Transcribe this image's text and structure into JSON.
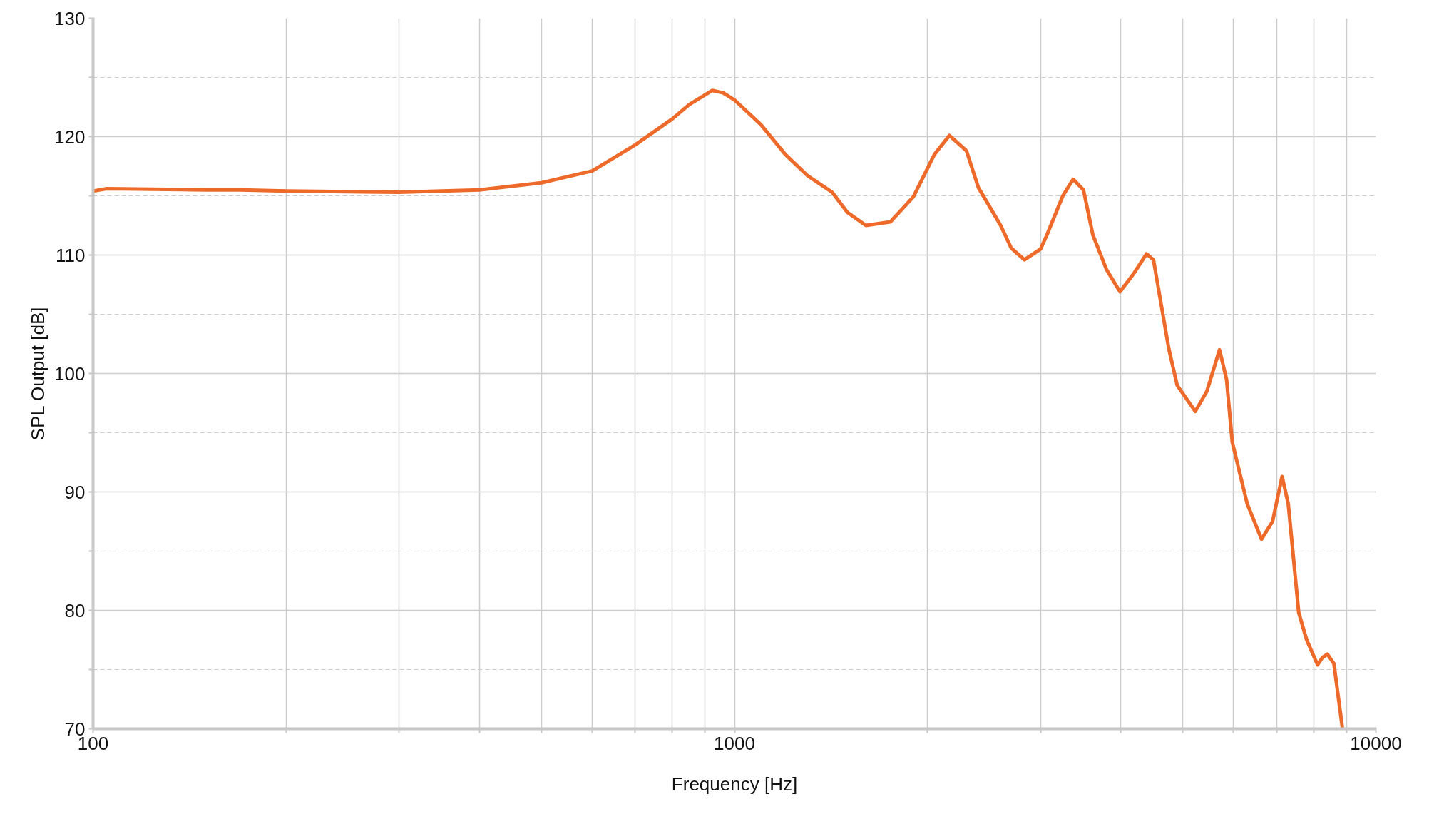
{
  "chart_data": {
    "type": "line",
    "xlabel": "Frequency [Hz]",
    "ylabel": "SPL Output [dB]",
    "log": "x",
    "grid": true,
    "marker": "none",
    "line_style": "solid",
    "xlim": [
      100,
      10000
    ],
    "ylim": [
      70,
      130
    ],
    "xticks": [
      100,
      {
        "value": 200,
        "label": null
      },
      {
        "value": 300,
        "label": null
      },
      {
        "value": 400,
        "label": null
      },
      {
        "value": 500,
        "label": null
      },
      {
        "value": 600,
        "label": null
      },
      {
        "value": 700,
        "label": null
      },
      {
        "value": 800,
        "label": null
      },
      {
        "value": 900,
        "label": null
      },
      1000,
      {
        "value": 2000,
        "label": null
      },
      {
        "value": 3000,
        "label": null
      },
      {
        "value": 4000,
        "label": null
      },
      {
        "value": 5000,
        "label": null
      },
      {
        "value": 6000,
        "label": null
      },
      {
        "value": 7000,
        "label": null
      },
      {
        "value": 8000,
        "label": null
      },
      {
        "value": 9000,
        "label": null
      },
      10000
    ],
    "yticks": [
      70,
      {
        "value": 75,
        "label": null
      },
      80,
      {
        "value": 85,
        "label": null
      },
      90,
      {
        "value": 95,
        "label": null
      },
      100,
      {
        "value": 105,
        "label": null
      },
      110,
      {
        "value": 115,
        "label": null
      },
      120,
      {
        "value": 125,
        "label": null
      },
      130
    ],
    "x": [
      100,
      105,
      150,
      170,
      200,
      300,
      400,
      500,
      600,
      700,
      800,
      850,
      923,
      960,
      1000,
      1100,
      1200,
      1300,
      1420,
      1500,
      1603,
      1750,
      1900,
      2050,
      2163,
      2300,
      2400,
      2600,
      2700,
      2832,
      3000,
      3070,
      3250,
      3373,
      3500,
      3620,
      3800,
      3990,
      4200,
      4389,
      4500,
      4754,
      4900,
      5229,
      5450,
      5704,
      5850,
      5971,
      6300,
      6632,
      6900,
      7140,
      7300,
      7580,
      7800,
      8110,
      8250,
      8400,
      8600,
      8870
    ],
    "series": [
      {
        "color": "#ee6a2a",
        "values": [
          115.4,
          115.6,
          115.5,
          115.5,
          115.4,
          115.3,
          115.5,
          116.1,
          117.1,
          119.3,
          121.5,
          122.7,
          123.9,
          123.7,
          123.1,
          121.0,
          118.5,
          116.7,
          115.3,
          113.6,
          112.5,
          112.8,
          114.9,
          118.5,
          120.1,
          118.8,
          115.7,
          112.5,
          110.6,
          109.6,
          110.5,
          111.7,
          115.0,
          116.4,
          115.5,
          111.7,
          108.8,
          106.9,
          108.5,
          110.1,
          109.6,
          102.1,
          99.0,
          96.8,
          98.5,
          102,
          99.5,
          94.2,
          89,
          86,
          87.5,
          91.3,
          89,
          79.8,
          77.5,
          75.4,
          76.0,
          76.3,
          75.5,
          70
        ]
      }
    ]
  }
}
